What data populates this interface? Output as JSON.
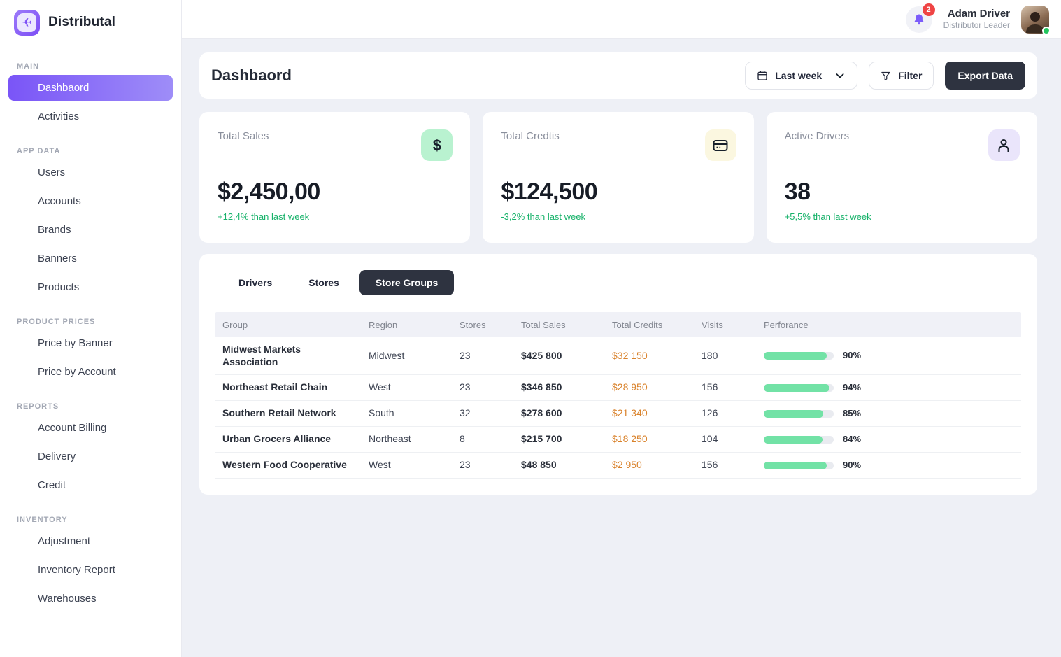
{
  "brand": {
    "name": "Distributal"
  },
  "sidebar": {
    "sections": [
      {
        "label": "Main",
        "items": [
          {
            "label": "Dashbaord",
            "active": true
          },
          {
            "label": "Activities",
            "active": false
          }
        ]
      },
      {
        "label": "App Data",
        "items": [
          {
            "label": "Users",
            "active": false
          },
          {
            "label": "Accounts",
            "active": false
          },
          {
            "label": "Brands",
            "active": false
          },
          {
            "label": "Banners",
            "active": false
          },
          {
            "label": "Products",
            "active": false
          }
        ]
      },
      {
        "label": "Product Prices",
        "items": [
          {
            "label": "Price by Banner",
            "active": false
          },
          {
            "label": "Price by Account",
            "active": false
          }
        ]
      },
      {
        "label": "Reports",
        "items": [
          {
            "label": "Account Billing",
            "active": false
          },
          {
            "label": "Delivery",
            "active": false
          },
          {
            "label": "Credit",
            "active": false
          }
        ]
      },
      {
        "label": "Inventory",
        "items": [
          {
            "label": "Adjustment",
            "active": false
          },
          {
            "label": "Inventory Report",
            "active": false
          },
          {
            "label": "Warehouses",
            "active": false
          }
        ]
      }
    ]
  },
  "topbar": {
    "notifications_count": "2",
    "user": {
      "name": "Adam Driver",
      "role": "Distributor Leader"
    }
  },
  "page_header": {
    "title": "Dashbaord",
    "date_range_label": "Last week",
    "filter_label": "Filter",
    "export_label": "Export Data"
  },
  "stats": [
    {
      "label": "Total Sales",
      "value": "$2,450,00",
      "delta": "+12,4% than last week",
      "icon": "dollar-icon",
      "icon_bg": "#b9f2d0",
      "delta_color": "#17b26a"
    },
    {
      "label": "Total Credtis",
      "value": "$124,500",
      "delta": "-3,2% than last week",
      "icon": "credit-card-icon",
      "icon_bg": "#fbf7e0",
      "delta_color": "#17b26a"
    },
    {
      "label": "Active Drivers",
      "value": "38",
      "delta": "+5,5% than last week",
      "icon": "person-icon",
      "icon_bg": "#eae5fb",
      "delta_color": "#17b26a"
    }
  ],
  "tabs": [
    {
      "label": "Drivers",
      "active": false
    },
    {
      "label": "Stores",
      "active": false
    },
    {
      "label": "Store Groups",
      "active": true
    }
  ],
  "table": {
    "columns": [
      "Group",
      "Region",
      "Stores",
      "Total Sales",
      "Total Credits",
      "Visits",
      "Perforance"
    ],
    "rows": [
      {
        "group": "Midwest Markets Association",
        "region": "Midwest",
        "stores": "23",
        "total_sales": "$425 800",
        "total_credits": "$32 150",
        "visits": "180",
        "performance": "90%"
      },
      {
        "group": "Northeast Retail Chain",
        "region": "West",
        "stores": "23",
        "total_sales": "$346 850",
        "total_credits": "$28 950",
        "visits": "156",
        "performance": "94%"
      },
      {
        "group": "Southern Retail Network",
        "region": "South",
        "stores": "32",
        "total_sales": "$278 600",
        "total_credits": "$21 340",
        "visits": "126",
        "performance": "85%"
      },
      {
        "group": "Urban Grocers Alliance",
        "region": "Northeast",
        "stores": "8",
        "total_sales": "$215 700",
        "total_credits": "$18 250",
        "visits": "104",
        "performance": "84%"
      },
      {
        "group": "Western Food Cooperative",
        "region": "West",
        "stores": "23",
        "total_sales": "$48 850",
        "total_credits": "$2 950",
        "visits": "156",
        "performance": "90%"
      }
    ]
  },
  "colors": {
    "accent_purple": "#7c5cfa",
    "dark_button": "#2e3340",
    "delta_green": "#17b26a",
    "credits_orange": "#d9822b",
    "bar_green": "#72e2a6",
    "badge_red": "#ef4444",
    "page_bg": "#eef0f6"
  }
}
